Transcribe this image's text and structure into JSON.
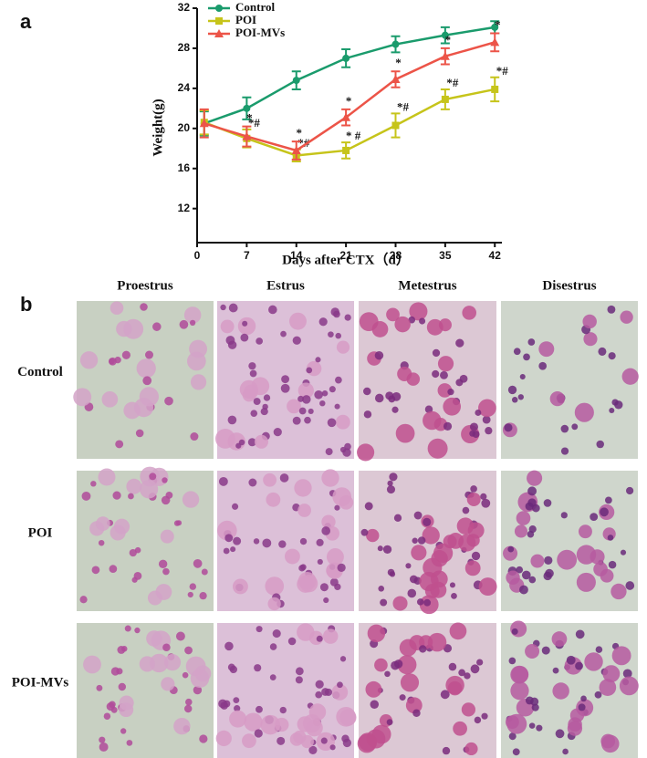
{
  "panel_a_label": "a",
  "chart_data": {
    "type": "line",
    "xlabel": "Days after CTX（d）",
    "ylabel": "Weight(g)",
    "x": [
      1,
      7,
      14,
      21,
      28,
      35,
      42
    ],
    "xlim": [
      0,
      43
    ],
    "xticks": [
      0,
      7,
      14,
      21,
      28,
      35,
      42
    ],
    "ylim": [
      8.6,
      32
    ],
    "yticks": [
      12,
      16,
      20,
      24,
      28,
      32
    ],
    "legend": "top-left",
    "grid": false,
    "series": [
      {
        "name": "Control",
        "color": "#1a9b6c",
        "marker": "circle",
        "values": [
          20.5,
          22.0,
          24.8,
          27.0,
          28.4,
          29.3,
          30.1
        ],
        "errors": [
          1.2,
          1.1,
          0.9,
          0.9,
          0.8,
          0.8,
          0.6
        ],
        "annotations": [
          null,
          null,
          null,
          null,
          null,
          null,
          null
        ]
      },
      {
        "name": "POI",
        "color": "#c6c41a",
        "marker": "square",
        "values": [
          20.6,
          19.0,
          17.3,
          17.8,
          20.3,
          22.9,
          23.9
        ],
        "errors": [
          1.2,
          0.9,
          0.6,
          0.8,
          1.2,
          1.0,
          1.2
        ],
        "annotations": [
          null,
          "*#",
          "*#",
          "* #",
          "*#",
          "*#",
          "*#"
        ]
      },
      {
        "name": "POI-MVs",
        "color": "#ec5448",
        "marker": "triangle",
        "values": [
          20.5,
          19.2,
          17.8,
          21.1,
          24.9,
          27.2,
          28.6
        ],
        "errors": [
          1.4,
          1.0,
          0.9,
          0.8,
          0.8,
          0.8,
          0.9
        ],
        "annotations": [
          null,
          "*",
          "*",
          "*",
          "*",
          "*",
          "*"
        ]
      }
    ]
  },
  "panel_b": {
    "label": "b",
    "columns": [
      "Proestrus",
      "Estrus",
      "Metestrus",
      "Disestrus"
    ],
    "rows": [
      "Control",
      "POI",
      "POI-MVs"
    ]
  }
}
